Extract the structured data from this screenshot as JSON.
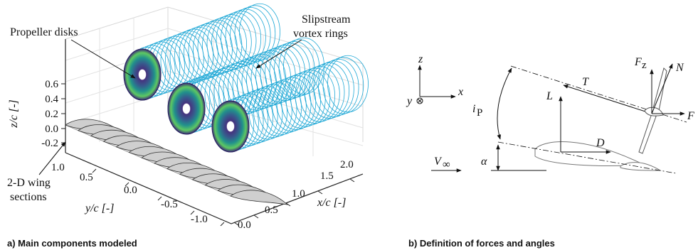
{
  "panel_a": {
    "caption": "a) Main components modeled",
    "labels": {
      "propeller_disks": "Propeller disks",
      "slipstream_line1": "Slipstream",
      "slipstream_line2": "vortex rings",
      "wing_line1": "2-D wing",
      "wing_line2": "sections"
    },
    "axes": {
      "z_label": "z/c [-]",
      "z_ticks": [
        "0.6",
        "0.4",
        "0.2",
        "0.0",
        "-0.2"
      ],
      "y_label": "y/c [-]",
      "y_ticks": [
        "1.0",
        "0.5",
        "0.0",
        "-0.5",
        "-1.0"
      ],
      "x_label": "x/c [-]",
      "x_ticks": [
        "2.0",
        "1.5",
        "1.0",
        "0.5",
        "0.0"
      ]
    },
    "colors": {
      "rings": "#1fa8d6",
      "disk_outer": "#3b2a78",
      "disk_mid": "#21908c",
      "disk_hot": "#d8e219",
      "wing_fill": "#c8c8c8"
    }
  },
  "panel_b": {
    "caption": "b) Definition of forces and angles",
    "labels": {
      "z": "z",
      "x": "x",
      "y": "y",
      "T": "T",
      "L": "L",
      "D": "D",
      "Fz": "F",
      "Fz_sub": "z",
      "N": "N",
      "F": "F",
      "ip": "i",
      "ip_sub": "P",
      "alpha": "α",
      "vinf": "V",
      "vinf_sub": "∞"
    }
  }
}
